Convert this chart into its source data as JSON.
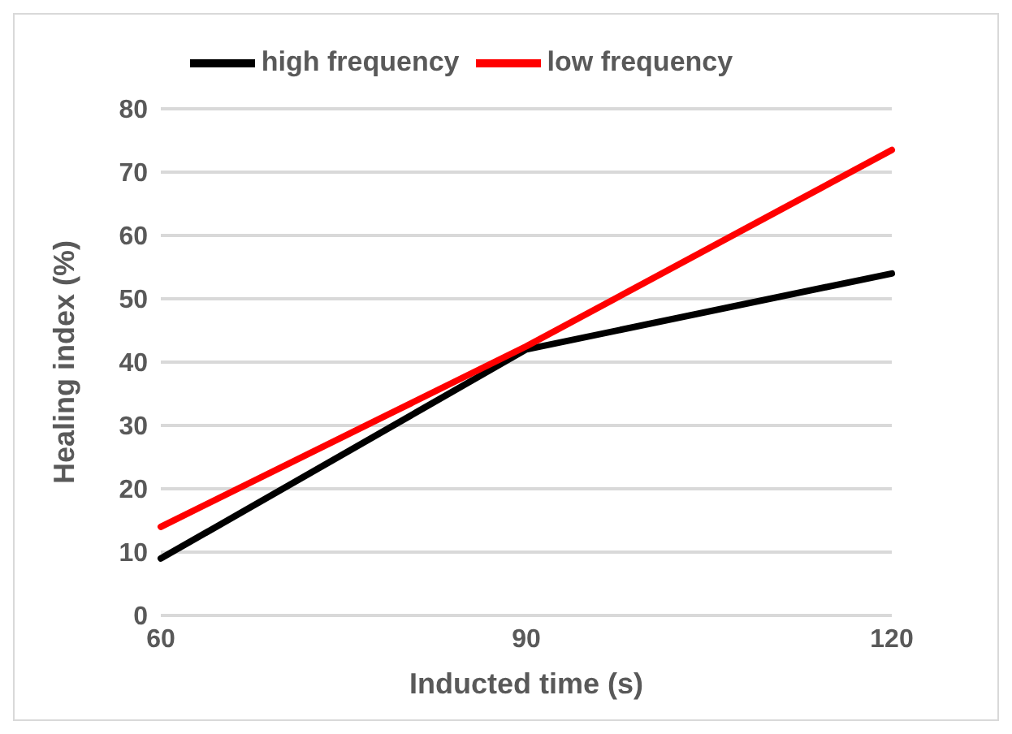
{
  "chart_data": {
    "type": "line",
    "xlabel": "Inducted time (s)",
    "ylabel": "Healing index  (%)",
    "categories": [
      "60",
      "90",
      "120"
    ],
    "series": [
      {
        "name": "high frequency",
        "color": "#000000",
        "values": [
          9,
          42,
          54
        ]
      },
      {
        "name": "low frequency",
        "color": "#ff0000",
        "values": [
          14,
          42.5,
          73.5
        ]
      }
    ],
    "ylim": [
      0,
      80
    ],
    "yticks": [
      0,
      10,
      20,
      30,
      40,
      50,
      60,
      70,
      80
    ],
    "grid": "y",
    "legend": "top",
    "marker": "none",
    "line_style": "solid"
  }
}
